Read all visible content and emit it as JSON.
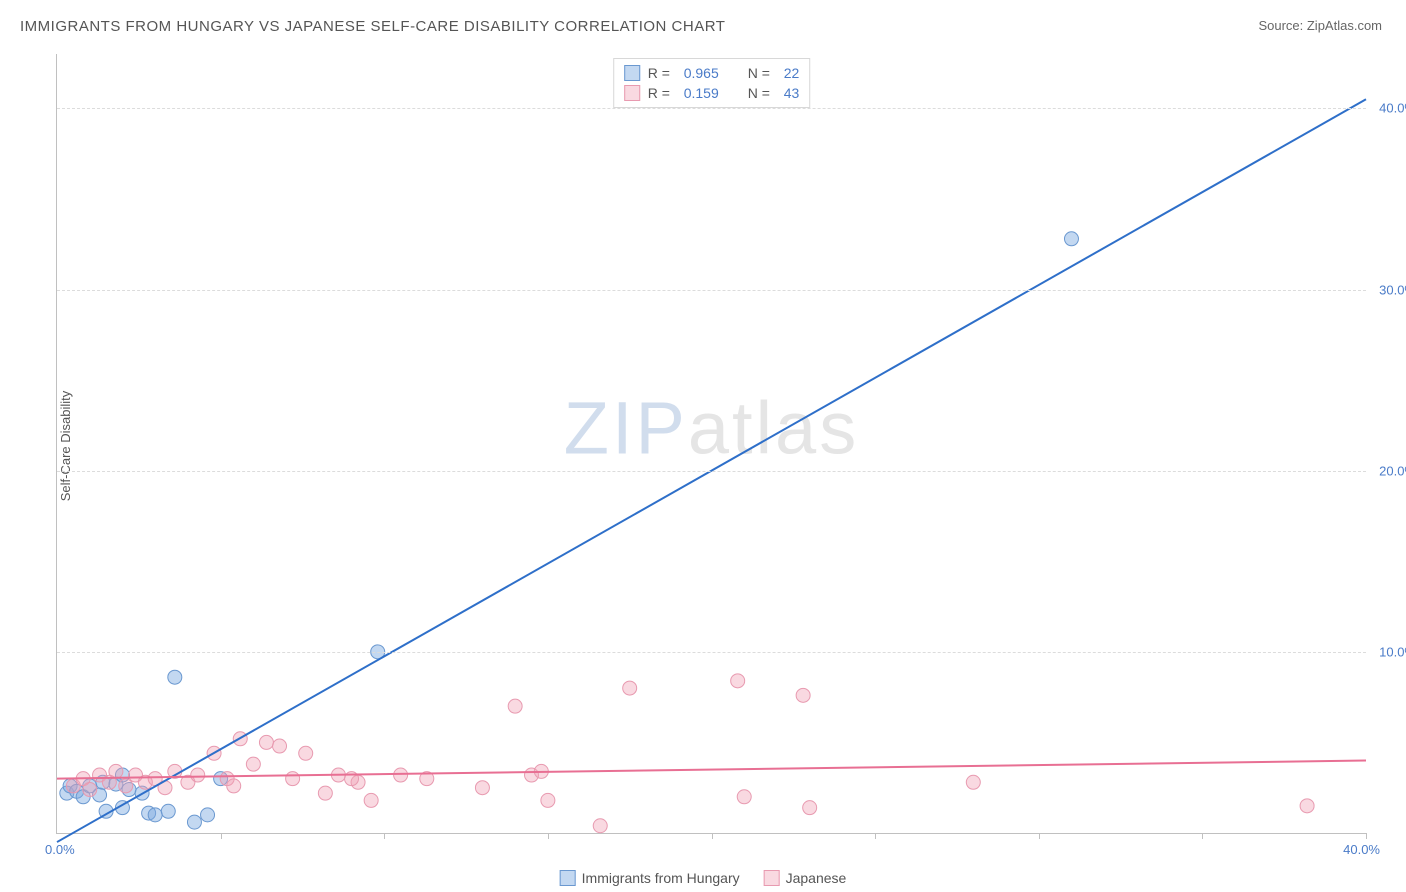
{
  "title": "IMMIGRANTS FROM HUNGARY VS JAPANESE SELF-CARE DISABILITY CORRELATION CHART",
  "source": "Source: ZipAtlas.com",
  "y_axis_label": "Self-Care Disability",
  "watermark": {
    "prefix": "ZIP",
    "suffix": "atlas"
  },
  "chart": {
    "type": "scatter",
    "xlim": [
      0,
      40
    ],
    "ylim": [
      0,
      43
    ],
    "x_ticks": [
      5,
      10,
      15,
      20,
      25,
      30,
      35,
      40
    ],
    "x_labels": {
      "min": "0.0%",
      "max": "40.0%"
    },
    "y_gridlines": [
      10,
      20,
      30,
      40
    ],
    "y_tick_labels": [
      "10.0%",
      "20.0%",
      "30.0%",
      "40.0%"
    ],
    "grid_color": "#dcdcdc",
    "axis_color": "#c0c0c0",
    "background_color": "#ffffff",
    "tick_label_color": "#4a7bc8",
    "series": [
      {
        "name": "Immigrants from Hungary",
        "color_fill": "rgba(122,168,224,0.45)",
        "color_stroke": "#6a98d0",
        "line_color": "#2e6fc9",
        "marker_radius": 7,
        "R": "0.965",
        "N": "22",
        "trend": {
          "x1": 0,
          "y1": -0.5,
          "x2": 40,
          "y2": 40.5
        },
        "points": [
          [
            0.3,
            2.2
          ],
          [
            0.4,
            2.6
          ],
          [
            0.6,
            2.3
          ],
          [
            0.8,
            2.0
          ],
          [
            1.0,
            2.6
          ],
          [
            1.3,
            2.1
          ],
          [
            1.4,
            2.8
          ],
          [
            1.5,
            1.2
          ],
          [
            1.8,
            2.7
          ],
          [
            2.0,
            1.4
          ],
          [
            2.2,
            2.4
          ],
          [
            2.6,
            2.2
          ],
          [
            2.8,
            1.1
          ],
          [
            3.0,
            1.0
          ],
          [
            3.4,
            1.2
          ],
          [
            3.6,
            8.6
          ],
          [
            4.2,
            0.6
          ],
          [
            4.6,
            1.0
          ],
          [
            5.0,
            3.0
          ],
          [
            9.8,
            10.0
          ],
          [
            2.0,
            3.2
          ],
          [
            31.0,
            32.8
          ]
        ]
      },
      {
        "name": "Japanese",
        "color_fill": "rgba(240,160,180,0.40)",
        "color_stroke": "#e89ab0",
        "line_color": "#e86f93",
        "marker_radius": 7,
        "R": "0.159",
        "N": "43",
        "trend": {
          "x1": 0,
          "y1": 3.0,
          "x2": 40,
          "y2": 4.0
        },
        "points": [
          [
            0.5,
            2.6
          ],
          [
            0.8,
            3.0
          ],
          [
            1.0,
            2.4
          ],
          [
            1.3,
            3.2
          ],
          [
            1.6,
            2.8
          ],
          [
            1.8,
            3.4
          ],
          [
            2.1,
            2.6
          ],
          [
            2.4,
            3.2
          ],
          [
            2.7,
            2.8
          ],
          [
            3.0,
            3.0
          ],
          [
            3.3,
            2.5
          ],
          [
            3.6,
            3.4
          ],
          [
            4.0,
            2.8
          ],
          [
            4.3,
            3.2
          ],
          [
            4.8,
            4.4
          ],
          [
            5.2,
            3.0
          ],
          [
            5.6,
            5.2
          ],
          [
            6.0,
            3.8
          ],
          [
            6.4,
            5.0
          ],
          [
            6.8,
            4.8
          ],
          [
            7.2,
            3.0
          ],
          [
            7.6,
            4.4
          ],
          [
            8.2,
            2.2
          ],
          [
            8.6,
            3.2
          ],
          [
            9.2,
            2.8
          ],
          [
            9.6,
            1.8
          ],
          [
            10.5,
            3.2
          ],
          [
            11.3,
            3.0
          ],
          [
            13.0,
            2.5
          ],
          [
            14.0,
            7.0
          ],
          [
            14.5,
            3.2
          ],
          [
            15.0,
            1.8
          ],
          [
            16.6,
            0.4
          ],
          [
            17.5,
            8.0
          ],
          [
            20.8,
            8.4
          ],
          [
            21.0,
            2.0
          ],
          [
            22.8,
            7.6
          ],
          [
            23.0,
            1.4
          ],
          [
            28.0,
            2.8
          ],
          [
            14.8,
            3.4
          ],
          [
            9.0,
            3.0
          ],
          [
            5.4,
            2.6
          ],
          [
            38.2,
            1.5
          ]
        ]
      }
    ]
  },
  "legend_top": {
    "r_label": "R =",
    "n_label": "N ="
  }
}
